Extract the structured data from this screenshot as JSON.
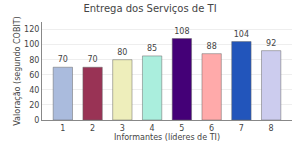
{
  "chart_data": {
    "type": "bar",
    "title": "Entrega dos Serviços de TI",
    "xlabel": "Informantes (líderes de TI)",
    "ylabel": "Valoração (segundo COBIT)",
    "x": [
      1,
      2,
      3,
      4,
      5,
      6,
      7,
      8
    ],
    "values": [
      70,
      70,
      80,
      85,
      108,
      88,
      104,
      92
    ],
    "colors": [
      "#aabbdd",
      "#993355",
      "#eeeebb",
      "#aaeedd",
      "#440077",
      "#ffaaaa",
      "#2255bb",
      "#ccccee"
    ],
    "xlim": [
      0.3,
      8.7
    ],
    "xticks": [
      1,
      2,
      3,
      4,
      5,
      6,
      7,
      8
    ],
    "ylim": [
      0,
      130
    ],
    "yticks": [
      0,
      20,
      40,
      60,
      80,
      100,
      120
    ],
    "grid": true,
    "data_labels": true
  }
}
